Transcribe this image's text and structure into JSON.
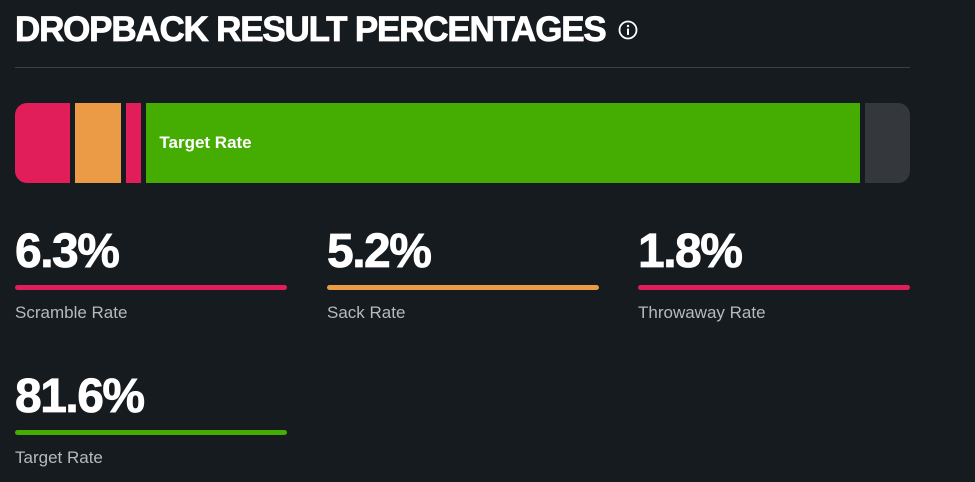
{
  "header": {
    "title": "DROPBACK RESULT PERCENTAGES",
    "info_icon": "info-circle-icon"
  },
  "bar": {
    "segments": [
      {
        "key": "scramble",
        "value": 6.3,
        "color": "#e21e5a",
        "label": ""
      },
      {
        "key": "sack",
        "value": 5.2,
        "color": "#eb9a46",
        "label": ""
      },
      {
        "key": "throwaway",
        "value": 1.8,
        "color": "#e21e5a",
        "label": ""
      },
      {
        "key": "target",
        "value": 81.6,
        "color": "#45ad02",
        "label": "Target Rate"
      },
      {
        "key": "other",
        "value": 5.1,
        "color": "#34383d",
        "label": ""
      }
    ]
  },
  "stats": {
    "scramble": {
      "value": "6.3%",
      "label": "Scramble Rate",
      "color": "#e21e5a"
    },
    "sack": {
      "value": "5.2%",
      "label": "Sack Rate",
      "color": "#eb9a46"
    },
    "throwaway": {
      "value": "1.8%",
      "label": "Throwaway Rate",
      "color": "#e21e5a"
    },
    "target": {
      "value": "81.6%",
      "label": "Target Rate",
      "color": "#45ad02"
    }
  }
}
